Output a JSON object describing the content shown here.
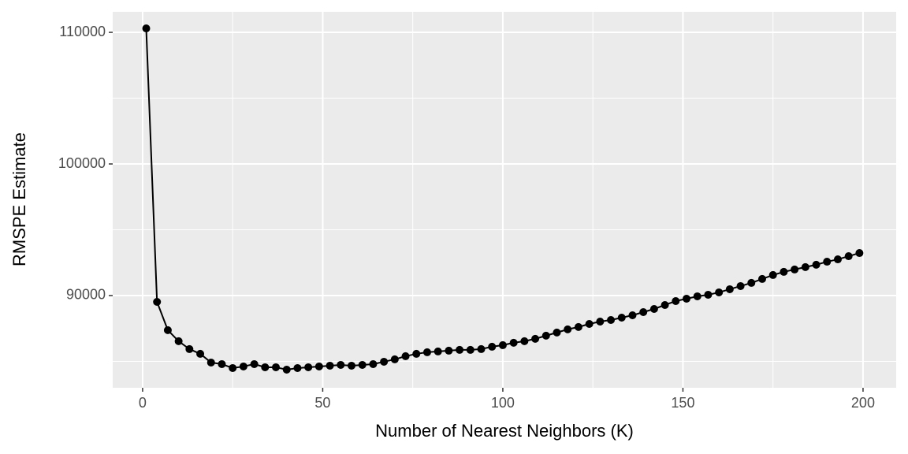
{
  "chart_data": {
    "type": "line",
    "x_label": "Number of Nearest Neighbors (K)",
    "y_label": "RMSPE Estimate",
    "x": [
      1,
      4,
      7,
      10,
      13,
      16,
      19,
      22,
      25,
      28,
      31,
      34,
      37,
      40,
      43,
      46,
      49,
      52,
      55,
      58,
      61,
      64,
      67,
      70,
      73,
      76,
      79,
      82,
      85,
      88,
      91,
      94,
      97,
      100,
      103,
      106,
      109,
      112,
      115,
      118,
      121,
      124,
      127,
      130,
      133,
      136,
      139,
      142,
      145,
      148,
      151,
      154,
      157,
      160,
      163,
      166,
      169,
      172,
      175,
      178,
      181,
      184,
      187,
      190,
      193,
      196,
      199
    ],
    "values": [
      110300,
      89520,
      87370,
      86530,
      85930,
      85570,
      84910,
      84790,
      84490,
      84610,
      84790,
      84550,
      84550,
      84370,
      84490,
      84550,
      84610,
      84670,
      84730,
      84670,
      84730,
      84790,
      84970,
      85150,
      85390,
      85570,
      85690,
      85750,
      85810,
      85870,
      85870,
      85930,
      86110,
      86230,
      86410,
      86530,
      86710,
      86950,
      87190,
      87430,
      87610,
      87840,
      88020,
      88140,
      88320,
      88500,
      88740,
      88980,
      89280,
      89580,
      89760,
      89940,
      90060,
      90240,
      90480,
      90720,
      90960,
      91260,
      91560,
      91800,
      91980,
      92160,
      92340,
      92570,
      92750,
      92990,
      93230
    ],
    "color": "#000000",
    "xlim": [
      -8.3,
      209.2
    ],
    "ylim": [
      82990,
      111560
    ],
    "xticks": [
      0,
      50,
      100,
      150,
      200
    ],
    "yticks": [
      90000,
      100000,
      110000
    ],
    "minor_xticks": [
      25,
      75,
      125,
      175
    ],
    "minor_yticks": [
      85000,
      95000,
      105000
    ],
    "grid": true
  }
}
